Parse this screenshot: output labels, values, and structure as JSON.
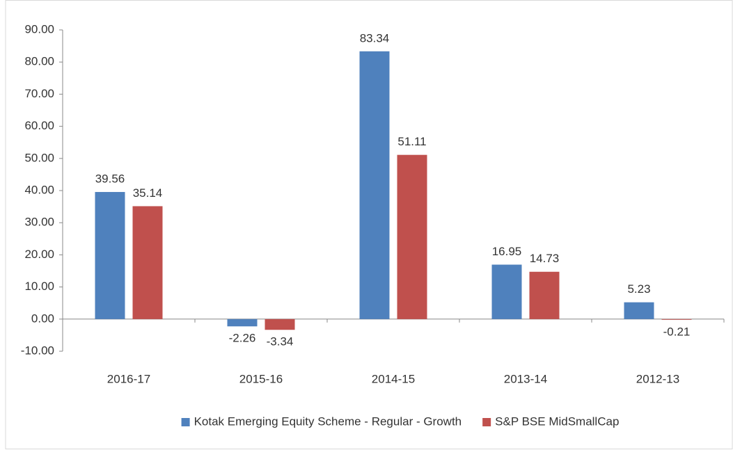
{
  "chart_data": {
    "type": "bar",
    "categories": [
      "2016-17",
      "2015-16",
      "2014-15",
      "2013-14",
      "2012-13"
    ],
    "series": [
      {
        "name": "Kotak Emerging Equity Scheme - Regular - Growth",
        "color": "#4f81bd",
        "values": [
          39.56,
          -2.26,
          83.34,
          16.95,
          5.23
        ]
      },
      {
        "name": "S&P BSE MidSmallCap",
        "color": "#c0504d",
        "values": [
          35.14,
          -3.34,
          51.11,
          14.73,
          -0.21
        ]
      }
    ],
    "ylim": [
      -10,
      90
    ],
    "yticks": [
      {
        "value": -10,
        "label": "-10.00"
      },
      {
        "value": 0,
        "label": "0.00"
      },
      {
        "value": 10,
        "label": "10.00"
      },
      {
        "value": 20,
        "label": "20.00"
      },
      {
        "value": 30,
        "label": "30.00"
      },
      {
        "value": 40,
        "label": "40.00"
      },
      {
        "value": 50,
        "label": "50.00"
      },
      {
        "value": 60,
        "label": "60.00"
      },
      {
        "value": 70,
        "label": "70.00"
      },
      {
        "value": 80,
        "label": "80.00"
      },
      {
        "value": 90,
        "label": "90.00"
      }
    ],
    "legend": "bottom"
  }
}
